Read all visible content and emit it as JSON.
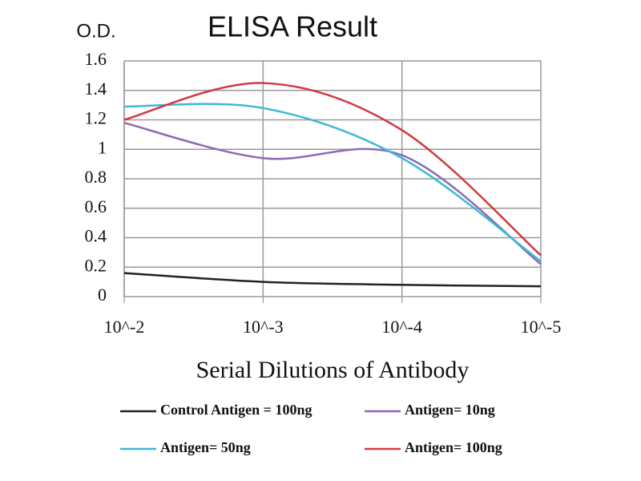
{
  "chart_data": {
    "type": "line",
    "title": "ELISA Result",
    "y_label": "O.D.",
    "x_label": "Serial Dilutions of Antibody",
    "categories": [
      "10^-2",
      "10^-3",
      "10^-4",
      "10^-5"
    ],
    "series": [
      {
        "name": "Control Antigen = 100ng",
        "color": "#222222",
        "values": [
          0.16,
          0.1,
          0.08,
          0.07
        ]
      },
      {
        "name": "Antigen= 10ng",
        "color": "#8b6bb3",
        "values": [
          1.18,
          0.94,
          0.96,
          0.22
        ]
      },
      {
        "name": "Antigen= 50ng",
        "color": "#3fb8d8",
        "values": [
          1.29,
          1.28,
          0.94,
          0.24
        ]
      },
      {
        "name": "Antigen= 100ng",
        "color": "#d0393f",
        "values": [
          1.2,
          1.45,
          1.13,
          0.28
        ]
      }
    ],
    "ylim": [
      0,
      1.6
    ],
    "yticks": [
      0,
      0.2,
      0.4,
      0.6,
      0.8,
      1,
      1.2,
      1.4,
      1.6
    ],
    "grid": true
  }
}
